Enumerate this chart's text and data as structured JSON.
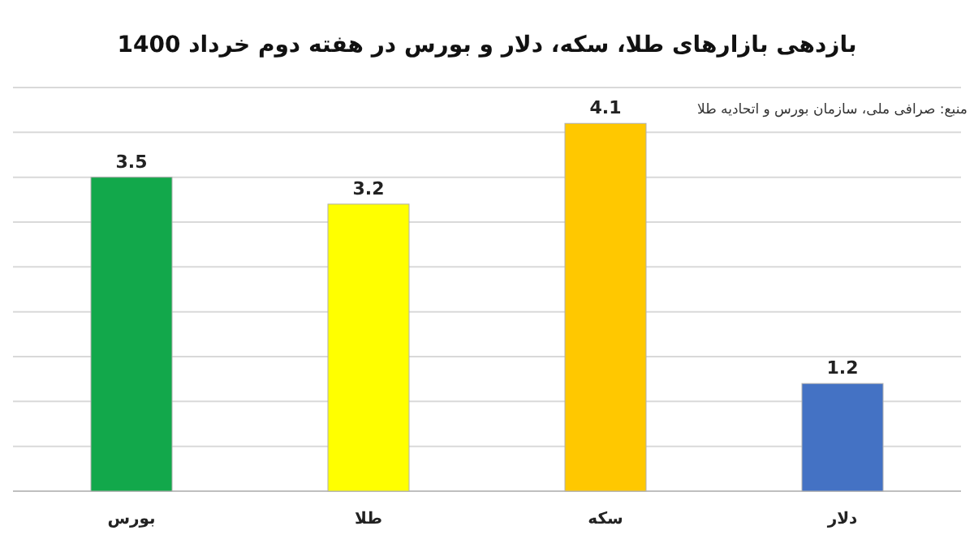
{
  "chart_data": {
    "type": "bar",
    "title": "بازدهی بازارهای طلا، سکه، دلار و بورس در هفته دوم خرداد 1400",
    "categories": [
      "بورس",
      "طلا",
      "سکه",
      "دلار"
    ],
    "values": [
      3.5,
      3.2,
      4.1,
      1.2
    ],
    "colors": [
      "#12a84b",
      "#ffff00",
      "#ffc800",
      "#4472c4"
    ],
    "data_labels": true,
    "ylim": [
      0,
      4.5
    ],
    "yticks": [
      {
        "value": 0,
        "label": null
      },
      {
        "value": 0.5,
        "label": null
      },
      {
        "value": 1,
        "label": null
      },
      {
        "value": 1.5,
        "label": null
      },
      {
        "value": 2,
        "label": null
      },
      {
        "value": 2.5,
        "label": null
      },
      {
        "value": 3,
        "label": null
      },
      {
        "value": 3.5,
        "label": null
      },
      {
        "value": 4,
        "label": null
      },
      {
        "value": 4.5,
        "label": null
      }
    ],
    "grid": "y",
    "tick_labels": "x",
    "annotations": [
      "منبع: صرافی ملی، سازمان بورس و اتحادیه طلا"
    ]
  }
}
